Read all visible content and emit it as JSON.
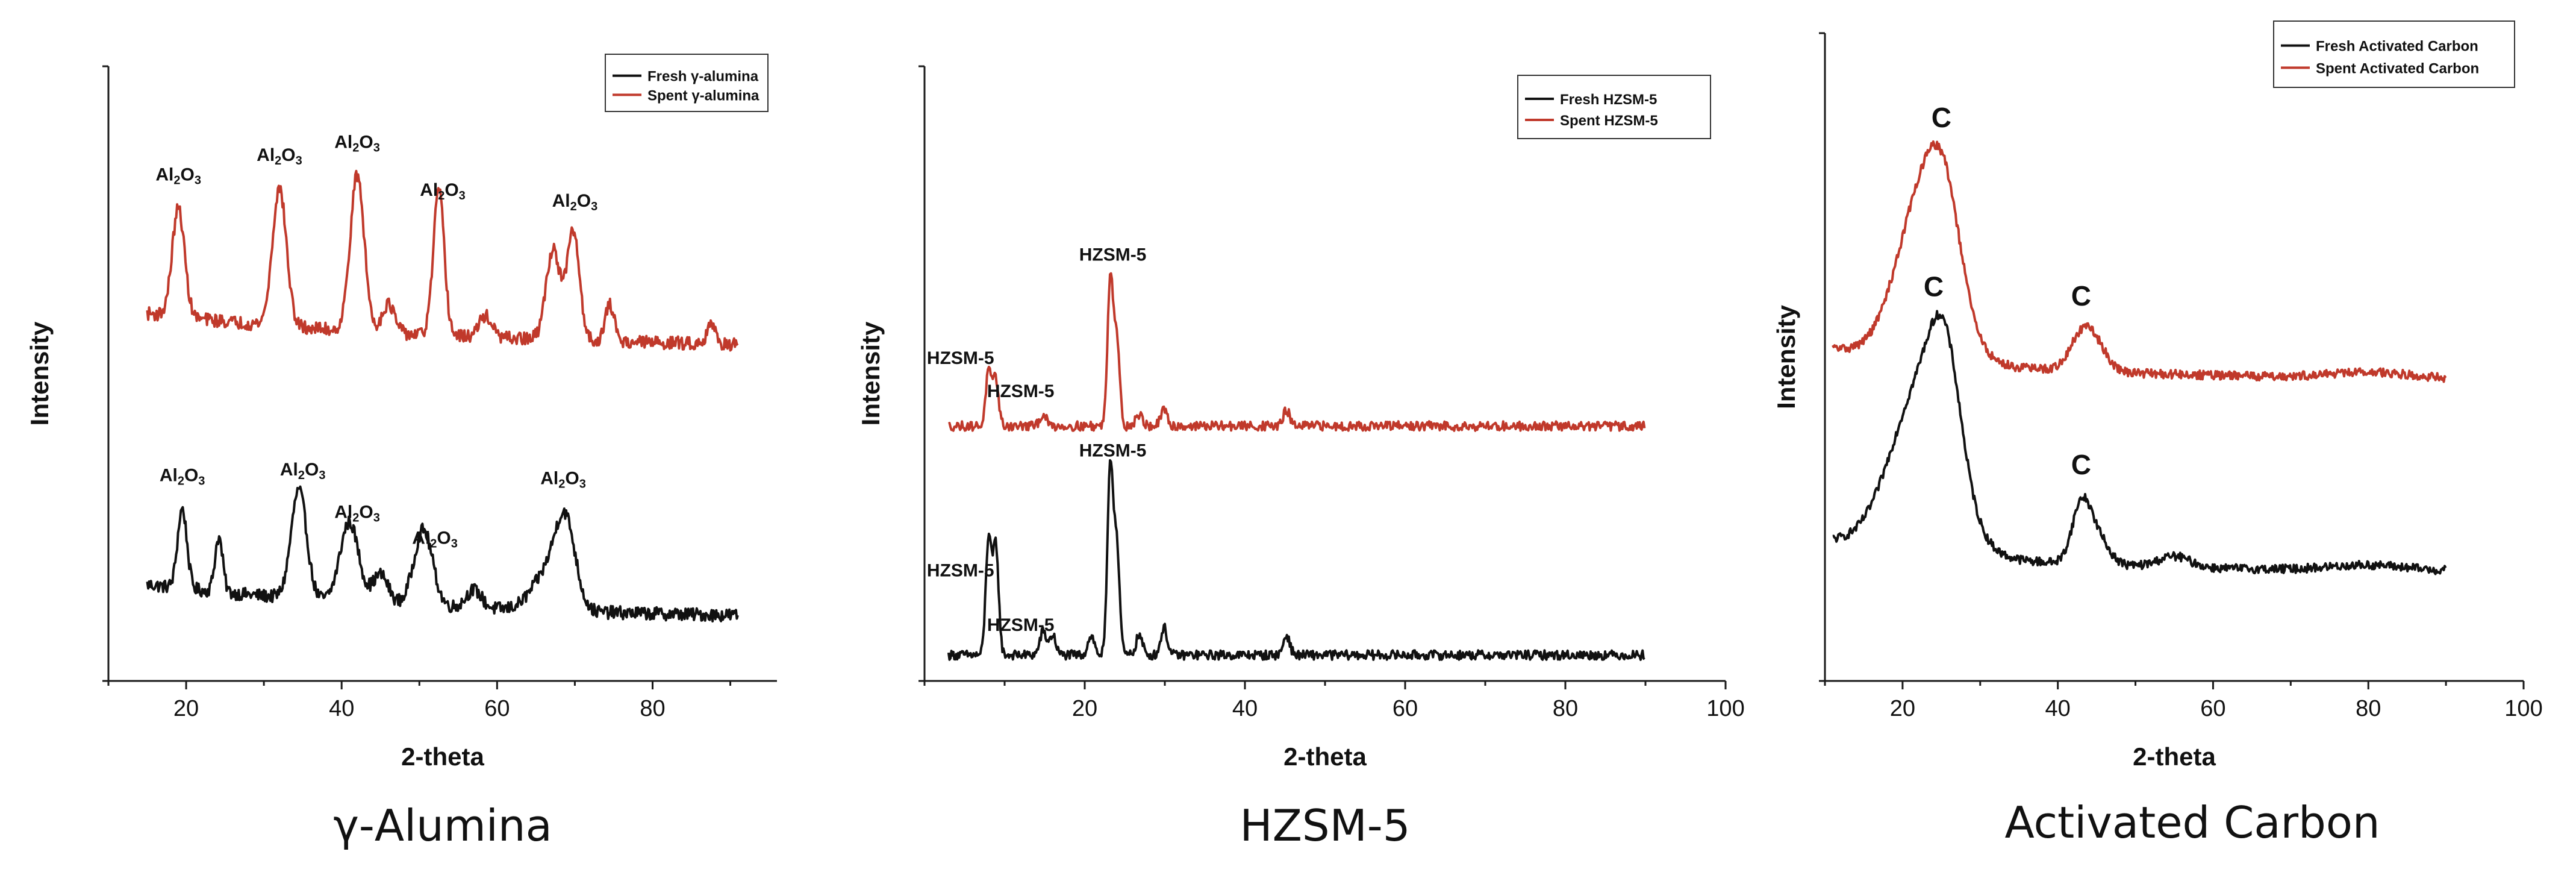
{
  "chart_data": [
    {
      "type": "line",
      "panel_title": "γ-Alumina",
      "xlabel": "2-theta",
      "ylabel": "Intensity",
      "xlim": [
        10,
        96
      ],
      "xticks": [
        20,
        40,
        60,
        80
      ],
      "yticks": [],
      "legend_position": "top-right",
      "series": [
        {
          "name": "Fresh γ-alumina",
          "color": "#111111",
          "peaks": [
            [
              19.5,
              0.22,
              0.6
            ],
            [
              24.2,
              0.15,
              0.5
            ],
            [
              34.5,
              0.3,
              1.0
            ],
            [
              41.0,
              0.22,
              1.2
            ],
            [
              45.0,
              0.08,
              1.0
            ],
            [
              50.5,
              0.21,
              1.2
            ],
            [
              57.0,
              0.05,
              1.0
            ],
            [
              66.5,
              0.1,
              2.0
            ],
            [
              68.8,
              0.22,
              1.3
            ]
          ]
        },
        {
          "name": "Spent γ-alumina",
          "color": "#c0392b",
          "peaks": [
            [
              19.0,
              0.3,
              0.8
            ],
            [
              32.0,
              0.38,
              0.9
            ],
            [
              42.0,
              0.43,
              0.9
            ],
            [
              46.0,
              0.08,
              0.8
            ],
            [
              52.5,
              0.4,
              0.7
            ],
            [
              58.5,
              0.06,
              0.8
            ],
            [
              67.2,
              0.25,
              0.9
            ],
            [
              69.8,
              0.3,
              0.8
            ],
            [
              74.5,
              0.1,
              0.6
            ],
            [
              87.5,
              0.06,
              0.5
            ]
          ]
        }
      ],
      "annotations_fresh": [
        {
          "x": 19.5,
          "text": "Al2O3"
        },
        {
          "x": 35.0,
          "text": "Al2O3"
        },
        {
          "x": 42.0,
          "text": "Al2O3"
        },
        {
          "x": 52.0,
          "text": "Al2O3"
        },
        {
          "x": 68.5,
          "text": "Al2O3"
        }
      ],
      "annotations_spent": [
        {
          "x": 19.0,
          "text": "Al2O3"
        },
        {
          "x": 32.0,
          "text": "Al2O3"
        },
        {
          "x": 42.0,
          "text": "Al2O3"
        },
        {
          "x": 53.0,
          "text": "Al2O3"
        },
        {
          "x": 70.0,
          "text": "Al2O3"
        }
      ]
    },
    {
      "type": "line",
      "panel_title": "HZSM-5",
      "xlabel": "2-theta",
      "ylabel": "Intensity",
      "xlim": [
        0,
        100
      ],
      "xticks": [
        20,
        40,
        60,
        80,
        100
      ],
      "yticks": [],
      "legend_position": "top-right",
      "series": [
        {
          "name": "Fresh HZSM-5",
          "color": "#111111",
          "peaks": [
            [
              8.0,
              0.3,
              0.35
            ],
            [
              8.9,
              0.28,
              0.35
            ],
            [
              14.8,
              0.06,
              0.4
            ],
            [
              16.0,
              0.05,
              0.4
            ],
            [
              20.8,
              0.05,
              0.4
            ],
            [
              23.2,
              0.48,
              0.35
            ],
            [
              24.0,
              0.28,
              0.35
            ],
            [
              26.8,
              0.05,
              0.4
            ],
            [
              29.9,
              0.07,
              0.4
            ],
            [
              45.2,
              0.05,
              0.4
            ]
          ]
        },
        {
          "name": "Spent HZSM-5",
          "color": "#c0392b",
          "peaks": [
            [
              8.0,
              0.14,
              0.35
            ],
            [
              8.9,
              0.12,
              0.35
            ],
            [
              14.8,
              0.03,
              0.4
            ],
            [
              23.2,
              0.38,
              0.35
            ],
            [
              24.0,
              0.22,
              0.35
            ],
            [
              26.8,
              0.03,
              0.4
            ],
            [
              29.9,
              0.04,
              0.4
            ],
            [
              45.2,
              0.04,
              0.4
            ]
          ]
        }
      ],
      "annotations_fresh": [
        {
          "x": 7.5,
          "text": "HZSM-5",
          "dx": -40,
          "dy": -30
        },
        {
          "x": 10.5,
          "text": "HZSM-5",
          "dx": 20,
          "dy": -10
        },
        {
          "x": 23.5,
          "text": "HZSM-5",
          "dx": 0,
          "dy": -18
        }
      ],
      "annotations_spent": [
        {
          "x": 7.5,
          "text": "HZSM-5",
          "dx": -40,
          "dy": -40
        },
        {
          "x": 10.5,
          "text": "HZSM-5",
          "dx": 20,
          "dy": -18
        },
        {
          "x": 23.5,
          "text": "HZSM-5",
          "dx": 0,
          "dy": -22
        }
      ]
    },
    {
      "type": "line",
      "panel_title": "Activated Carbon",
      "xlabel": "2-theta",
      "ylabel": "Intensity",
      "xlim": [
        10,
        100
      ],
      "xticks": [
        20,
        40,
        60,
        80,
        100
      ],
      "yticks": [],
      "legend_position": "top-right",
      "series": [
        {
          "name": "Fresh Activated Carbon",
          "color": "#111111",
          "peaks": [
            [
              22.5,
              0.3,
              4.0
            ],
            [
              25.5,
              0.2,
              2.0
            ],
            [
              43.0,
              0.1,
              1.2
            ],
            [
              45.0,
              0.05,
              1.5
            ],
            [
              55.0,
              0.02,
              2.0
            ],
            [
              80.0,
              0.01,
              5.0
            ]
          ]
        },
        {
          "name": "Spent Activated Carbon",
          "color": "#c0392b",
          "peaks": [
            [
              23.0,
              0.32,
              3.5
            ],
            [
              25.5,
              0.12,
              2.0
            ],
            [
              43.0,
              0.06,
              1.5
            ],
            [
              45.0,
              0.04,
              1.5
            ],
            [
              80.0,
              0.01,
              5.0
            ]
          ]
        }
      ],
      "annotations_fresh": [
        {
          "x": 24.0,
          "text": "C"
        },
        {
          "x": 43.0,
          "text": "C"
        }
      ],
      "annotations_spent": [
        {
          "x": 25.0,
          "text": "C"
        },
        {
          "x": 43.0,
          "text": "C"
        }
      ]
    }
  ]
}
